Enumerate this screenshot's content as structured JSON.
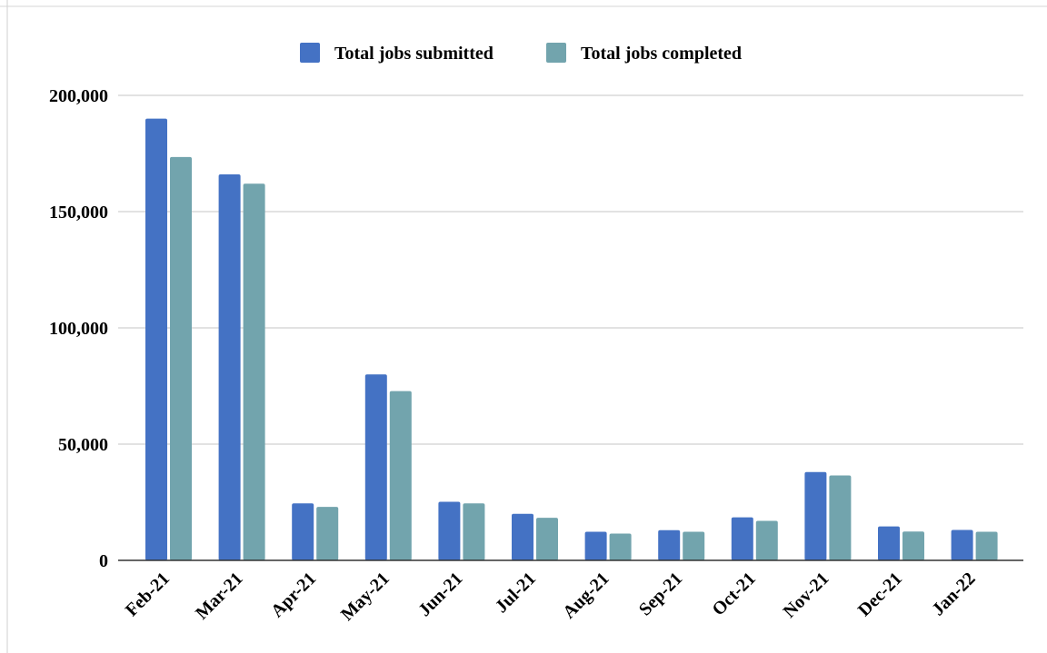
{
  "chart_data": {
    "type": "bar",
    "title": "",
    "xlabel": "",
    "ylabel": "",
    "ylim": [
      0,
      200000
    ],
    "yticks": [
      0,
      50000,
      100000,
      150000,
      200000
    ],
    "ytick_labels": [
      "0",
      "50,000",
      "100,000",
      "150,000",
      "200,000"
    ],
    "grid": true,
    "legend_position": "top-center",
    "categories": [
      "Feb-21",
      "Mar-21",
      "Apr-21",
      "May-21",
      "Jun-21",
      "Jul-21",
      "Aug-21",
      "Sep-21",
      "Oct-21",
      "Nov-21",
      "Dec-21",
      "Jan-22"
    ],
    "series": [
      {
        "name": "Total jobs submitted",
        "color": "#4472c4",
        "values": [
          190000,
          166000,
          24500,
          80000,
          25200,
          20000,
          12300,
          13000,
          18500,
          38000,
          14600,
          13100
        ]
      },
      {
        "name": "Total jobs completed",
        "color": "#72a4ad",
        "values": [
          173500,
          162000,
          23000,
          72800,
          24500,
          18300,
          11500,
          12300,
          17000,
          36500,
          12400,
          12300
        ]
      }
    ]
  }
}
